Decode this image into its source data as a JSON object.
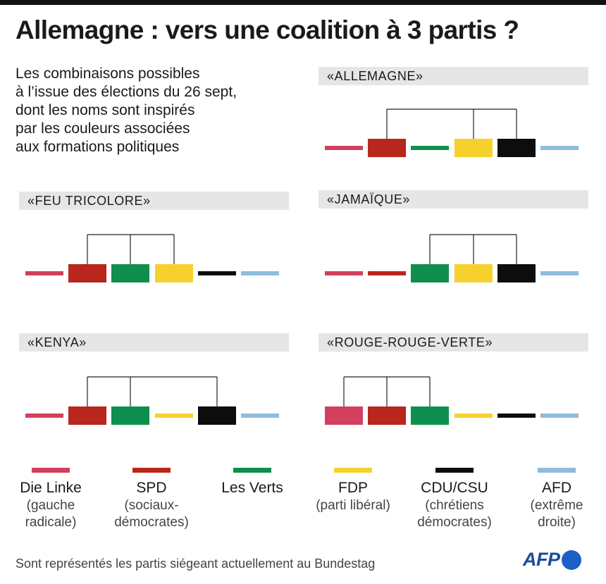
{
  "title": "Allemagne : vers une coalition à 3 partis ?",
  "intro_lines": [
    "Les combinaisons possibles",
    "à l’issue des élections du 26 sept,",
    "dont les noms sont inspirés",
    "par les couleurs associées",
    "aux formations politiques"
  ],
  "parties": [
    {
      "key": "linke",
      "name": "Die Linke",
      "desc": [
        "(gauche",
        "radicale)"
      ],
      "color": "#d33f5e"
    },
    {
      "key": "spd",
      "name": "SPD",
      "desc": [
        "(sociaux-",
        "démocrates)"
      ],
      "color": "#b8261c"
    },
    {
      "key": "verts",
      "name": "Les Verts",
      "desc": [],
      "color": "#0f8f4d"
    },
    {
      "key": "fdp",
      "name": "FDP",
      "desc": [
        "(parti libéral)"
      ],
      "color": "#f6d12e"
    },
    {
      "key": "cdu",
      "name": "CDU/CSU",
      "desc": [
        "(chrétiens",
        "démocrates)"
      ],
      "color": "#0d0d0d"
    },
    {
      "key": "afd",
      "name": "AFD",
      "desc": [
        "(extrême",
        "droite)"
      ],
      "color": "#8fbcdc"
    }
  ],
  "coalitions": [
    {
      "key": "allemagne",
      "label": "«ALLEMAGNE»",
      "members": [
        1,
        3,
        4
      ],
      "linke_variant": "line"
    },
    {
      "key": "feu-tricolore",
      "label": "«FEU TRICOLORE»",
      "members": [
        1,
        2,
        3
      ],
      "linke_variant": "line"
    },
    {
      "key": "jamaique",
      "label": "«JAMAÏQUE»",
      "members": [
        2,
        3,
        4
      ],
      "linke_variant": "line"
    },
    {
      "key": "kenya",
      "label": "«KENYA»",
      "members": [
        1,
        2,
        4
      ],
      "linke_variant": "line"
    },
    {
      "key": "rouge-rouge-verte",
      "label": "«ROUGE-ROUGE-VERTE»",
      "members": [
        0,
        1,
        2
      ],
      "linke_variant": "line"
    }
  ],
  "footnote": "Sont représentés les partis siégeant actuellement au Bundestag",
  "logo_text": "AFP"
}
